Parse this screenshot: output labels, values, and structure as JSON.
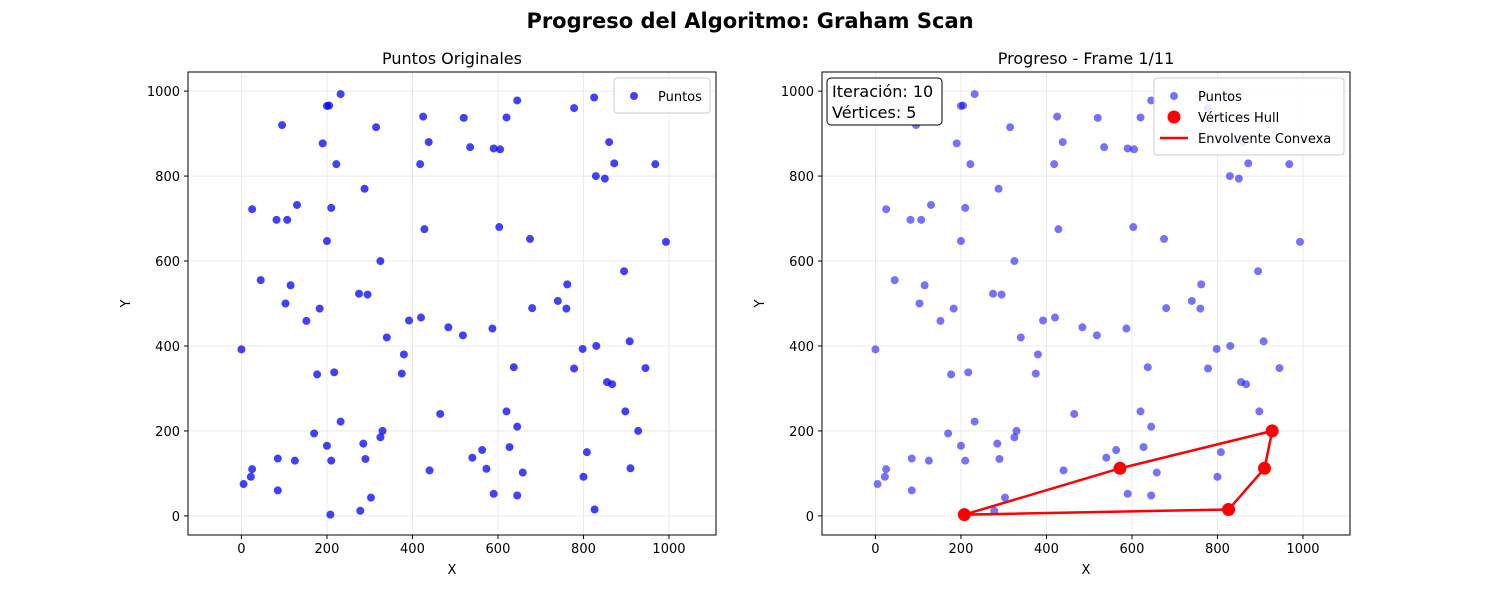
{
  "suptitle": "Progreso del Algoritmo: Graham Scan",
  "colors": {
    "points": "#0000ff",
    "hull": "#ff0000",
    "grid": "#e6e6e6",
    "axis": "#000000"
  },
  "chart_data": [
    {
      "type": "scatter",
      "title": "Puntos Originales",
      "xlabel": "X",
      "ylabel": "Y",
      "xlim": [
        -125,
        1110
      ],
      "ylim": [
        -45,
        1045
      ],
      "xticks": [
        0,
        200,
        400,
        600,
        800,
        1000
      ],
      "yticks": [
        0,
        200,
        400,
        600,
        800,
        1000
      ],
      "grid": true,
      "legend_position": "top-right",
      "series": [
        {
          "name": "Puntos",
          "color": "#0000ff",
          "points": [
            [
              232,
              993
            ],
            [
              200,
              965
            ],
            [
              205,
              966
            ],
            [
              95,
              920
            ],
            [
              315,
              915
            ],
            [
              190,
              877
            ],
            [
              222,
              828
            ],
            [
              288,
              770
            ],
            [
              25,
              722
            ],
            [
              210,
              725
            ],
            [
              130,
              732
            ],
            [
              82,
              697
            ],
            [
              107,
              697
            ],
            [
              200,
              647
            ],
            [
              45,
              555
            ],
            [
              115,
              543
            ],
            [
              325,
              600
            ],
            [
              275,
              523
            ],
            [
              295,
              521
            ],
            [
              103,
              500
            ],
            [
              183,
              488
            ],
            [
              152,
              459
            ],
            [
              340,
              420
            ],
            [
              0,
              392
            ],
            [
              380,
              380
            ],
            [
              177,
              333
            ],
            [
              217,
              338
            ],
            [
              375,
              335
            ],
            [
              170,
              194
            ],
            [
              232,
              222
            ],
            [
              200,
              165
            ],
            [
              210,
              130
            ],
            [
              285,
              170
            ],
            [
              290,
              134
            ],
            [
              330,
              200
            ],
            [
              325,
              185
            ],
            [
              85,
              135
            ],
            [
              125,
              130
            ],
            [
              25,
              110
            ],
            [
              22,
              92
            ],
            [
              5,
              75
            ],
            [
              85,
              60
            ],
            [
              303,
              43
            ],
            [
              278,
              12
            ],
            [
              208,
              3
            ],
            [
              425,
              940
            ],
            [
              520,
              937
            ],
            [
              438,
              880
            ],
            [
              535,
              868
            ],
            [
              590,
              865
            ],
            [
              605,
              863
            ],
            [
              620,
              938
            ],
            [
              645,
              978
            ],
            [
              418,
              828
            ],
            [
              428,
              675
            ],
            [
              603,
              680
            ],
            [
              675,
              652
            ],
            [
              392,
              460
            ],
            [
              420,
              467
            ],
            [
              484,
              444
            ],
            [
              518,
              425
            ],
            [
              587,
              441
            ],
            [
              680,
              489
            ],
            [
              465,
              240
            ],
            [
              440,
              107
            ],
            [
              540,
              137
            ],
            [
              563,
              155
            ],
            [
              573,
              111
            ],
            [
              590,
              52
            ],
            [
              620,
              246
            ],
            [
              627,
              162
            ],
            [
              637,
              350
            ],
            [
              645,
              210
            ],
            [
              658,
              102
            ],
            [
              645,
              48
            ],
            [
              778,
              960
            ],
            [
              825,
              985
            ],
            [
              829,
              800
            ],
            [
              850,
              794
            ],
            [
              860,
              880
            ],
            [
              872,
              830
            ],
            [
              968,
              828
            ],
            [
              895,
              576
            ],
            [
              993,
              645
            ],
            [
              740,
              506
            ],
            [
              762,
              545
            ],
            [
              760,
              488
            ],
            [
              798,
              393
            ],
            [
              830,
              400
            ],
            [
              778,
              347
            ],
            [
              855,
              315
            ],
            [
              867,
              310
            ],
            [
              908,
              411
            ],
            [
              945,
              348
            ],
            [
              898,
              246
            ],
            [
              928,
              200
            ],
            [
              808,
              150
            ],
            [
              800,
              92
            ],
            [
              910,
              112
            ],
            [
              826,
              15
            ]
          ]
        }
      ]
    },
    {
      "type": "scatter",
      "title": "Progreso - Frame 1/11",
      "xlabel": "X",
      "ylabel": "Y",
      "xlim": [
        -125,
        1110
      ],
      "ylim": [
        -45,
        1045
      ],
      "xticks": [
        0,
        200,
        400,
        600,
        800,
        1000
      ],
      "yticks": [
        0,
        200,
        400,
        600,
        800,
        1000
      ],
      "grid": true,
      "legend_position": "top-right",
      "info_box": {
        "iteration_text": "Iteración: 10",
        "vertices_text": "Vértices: 5",
        "position": "top-left"
      },
      "series": [
        {
          "name": "Puntos",
          "color": "#0000ff",
          "alpha": 0.55,
          "points": "same-as-first-panel"
        },
        {
          "name": "Vértices Hull",
          "color": "#ff0000",
          "points": [
            [
              208,
              3
            ],
            [
              826,
              15
            ],
            [
              910,
              112
            ],
            [
              928,
              200
            ],
            [
              572,
              112
            ]
          ]
        },
        {
          "name": "Envolvente Convexa",
          "color": "#ff0000",
          "kind": "line",
          "points": [
            [
              208,
              3
            ],
            [
              826,
              15
            ],
            [
              910,
              112
            ],
            [
              928,
              200
            ],
            [
              572,
              112
            ],
            [
              208,
              3
            ]
          ]
        }
      ]
    }
  ]
}
